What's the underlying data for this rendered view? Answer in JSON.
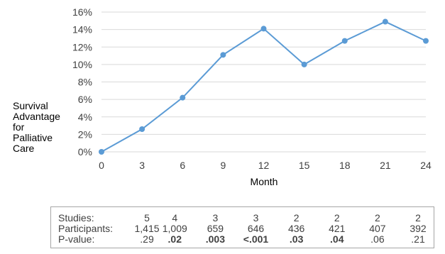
{
  "chart_data": {
    "type": "line",
    "x": [
      0,
      3,
      6,
      9,
      12,
      15,
      18,
      21,
      24
    ],
    "series": [
      {
        "values": [
          0.0,
          2.6,
          6.2,
          11.1,
          14.1,
          10.0,
          12.7,
          14.9,
          12.7
        ]
      }
    ],
    "xlabel": "Month",
    "ylabel": "Survival Advantage for Palliative Care",
    "yticks": [
      "0%",
      "2%",
      "4%",
      "6%",
      "8%",
      "10%",
      "12%",
      "14%",
      "16%"
    ],
    "xticks": [
      "0",
      "3",
      "6",
      "9",
      "12",
      "15",
      "18",
      "21",
      "24"
    ],
    "ylim": [
      0,
      16
    ],
    "xlim": [
      0,
      24
    ],
    "grid": true,
    "line_color": "#5b9bd5"
  },
  "stats_table": {
    "rows": [
      {
        "label": "Studies:",
        "values": [
          "5",
          "4",
          "3",
          "3",
          "2",
          "2",
          "2",
          "2"
        ],
        "bold": [
          false,
          false,
          false,
          false,
          false,
          false,
          false,
          false
        ]
      },
      {
        "label": "Participants:",
        "values": [
          "1,415",
          "1,009",
          "659",
          "646",
          "436",
          "421",
          "407",
          "392"
        ],
        "bold": [
          false,
          false,
          false,
          false,
          false,
          false,
          false,
          false
        ]
      },
      {
        "label": "P-value:",
        "values": [
          ".29",
          ".02",
          ".003",
          "<.001",
          ".03",
          ".04",
          ".06",
          ".21"
        ],
        "bold": [
          false,
          true,
          true,
          true,
          true,
          true,
          false,
          false
        ]
      }
    ]
  }
}
